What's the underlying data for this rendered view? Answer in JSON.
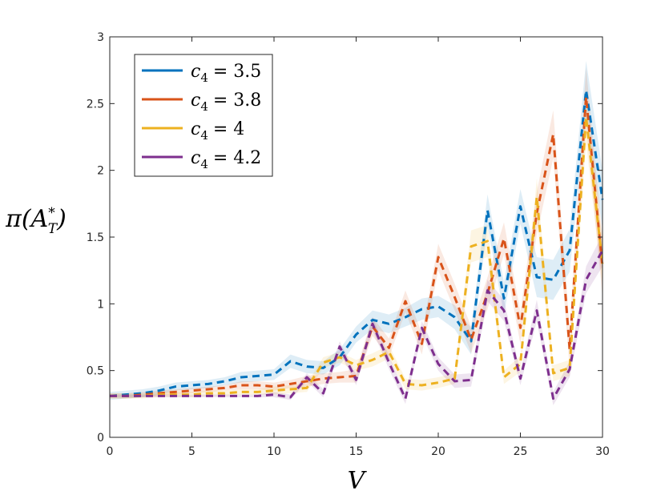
{
  "chart_data": {
    "type": "line",
    "xlabel": "V",
    "ylabel": "π(A",
    "ylabel_sub": "T",
    "ylabel_sup": "*",
    "ylabel_close": ")",
    "xlim": [
      0,
      30
    ],
    "ylim": [
      0,
      3
    ],
    "x_ticks": [
      0,
      5,
      10,
      15,
      20,
      25,
      30
    ],
    "x_tick_labels": [
      "0",
      "5",
      "10",
      "15",
      "20",
      "25",
      "30"
    ],
    "y_ticks": [
      0,
      0.5,
      1,
      1.5,
      2,
      2.5,
      3
    ],
    "y_tick_labels": [
      "0",
      "0.5",
      "1",
      "1.5",
      "2",
      "2.5",
      "3"
    ],
    "grid": false,
    "legend_position": "top-left",
    "x": [
      0,
      1,
      2,
      3,
      4,
      5,
      6,
      7,
      8,
      9,
      10,
      11,
      12,
      13,
      14,
      15,
      16,
      17,
      18,
      19,
      20,
      21,
      22,
      23,
      24,
      25,
      26,
      27,
      28,
      29,
      30
    ],
    "series": [
      {
        "name": "c4 = 3.5",
        "legend_var": "c",
        "legend_sub": "4",
        "legend_value": "= 3.5",
        "color": "#0072BD",
        "values": [
          0.31,
          0.32,
          0.33,
          0.35,
          0.38,
          0.39,
          0.4,
          0.42,
          0.45,
          0.46,
          0.47,
          0.57,
          0.53,
          0.52,
          0.6,
          0.77,
          0.88,
          0.85,
          0.9,
          0.96,
          0.98,
          0.9,
          0.72,
          1.7,
          1.04,
          1.73,
          1.2,
          1.18,
          1.4,
          2.6,
          1.78
        ],
        "band": [
          0.03,
          0.03,
          0.03,
          0.03,
          0.03,
          0.03,
          0.03,
          0.03,
          0.04,
          0.04,
          0.04,
          0.05,
          0.05,
          0.05,
          0.06,
          0.06,
          0.07,
          0.07,
          0.07,
          0.08,
          0.08,
          0.09,
          0.1,
          0.12,
          0.12,
          0.13,
          0.15,
          0.15,
          0.16,
          0.22,
          0.22
        ]
      },
      {
        "name": "c4 = 3.8",
        "legend_var": "c",
        "legend_sub": "4",
        "legend_value": "= 3.8",
        "color": "#D95319",
        "values": [
          0.31,
          0.31,
          0.32,
          0.33,
          0.34,
          0.35,
          0.36,
          0.37,
          0.39,
          0.39,
          0.38,
          0.4,
          0.42,
          0.44,
          0.45,
          0.46,
          0.83,
          0.67,
          1.02,
          0.7,
          1.35,
          1.05,
          0.73,
          1.08,
          1.49,
          0.82,
          1.68,
          2.27,
          0.66,
          2.55,
          1.27
        ],
        "band": [
          0.02,
          0.02,
          0.02,
          0.02,
          0.02,
          0.02,
          0.02,
          0.02,
          0.03,
          0.03,
          0.03,
          0.03,
          0.04,
          0.04,
          0.04,
          0.05,
          0.07,
          0.07,
          0.08,
          0.08,
          0.1,
          0.1,
          0.1,
          0.12,
          0.12,
          0.12,
          0.16,
          0.18,
          0.15,
          0.22,
          0.22
        ]
      },
      {
        "name": "c4 = 4",
        "legend_var": "c",
        "legend_sub": "4",
        "legend_value": "= 4",
        "color": "#EDB120",
        "values": [
          0.31,
          0.31,
          0.31,
          0.32,
          0.32,
          0.32,
          0.33,
          0.33,
          0.34,
          0.34,
          0.35,
          0.36,
          0.37,
          0.56,
          0.6,
          0.54,
          0.58,
          0.64,
          0.4,
          0.39,
          0.41,
          0.44,
          1.43,
          1.47,
          0.45,
          0.55,
          1.8,
          0.48,
          0.52,
          2.4,
          1.3
        ],
        "band": [
          0.02,
          0.02,
          0.02,
          0.02,
          0.02,
          0.02,
          0.02,
          0.02,
          0.02,
          0.02,
          0.03,
          0.03,
          0.03,
          0.04,
          0.04,
          0.04,
          0.05,
          0.05,
          0.04,
          0.04,
          0.04,
          0.04,
          0.12,
          0.12,
          0.05,
          0.06,
          0.14,
          0.06,
          0.06,
          0.2,
          0.16
        ]
      },
      {
        "name": "c4 = 4.2",
        "legend_var": "c",
        "legend_sub": "4",
        "legend_value": "= 4.2",
        "color": "#7E2F8E",
        "values": [
          0.31,
          0.31,
          0.31,
          0.31,
          0.31,
          0.31,
          0.31,
          0.31,
          0.31,
          0.31,
          0.32,
          0.3,
          0.45,
          0.33,
          0.68,
          0.43,
          0.85,
          0.56,
          0.29,
          0.82,
          0.55,
          0.42,
          0.43,
          1.1,
          0.95,
          0.44,
          0.95,
          0.29,
          0.51,
          1.18,
          1.4
        ],
        "band": [
          0.01,
          0.01,
          0.01,
          0.01,
          0.01,
          0.01,
          0.01,
          0.01,
          0.01,
          0.01,
          0.02,
          0.02,
          0.03,
          0.03,
          0.04,
          0.04,
          0.05,
          0.05,
          0.04,
          0.05,
          0.05,
          0.05,
          0.05,
          0.08,
          0.08,
          0.05,
          0.08,
          0.05,
          0.06,
          0.1,
          0.12
        ]
      }
    ]
  }
}
